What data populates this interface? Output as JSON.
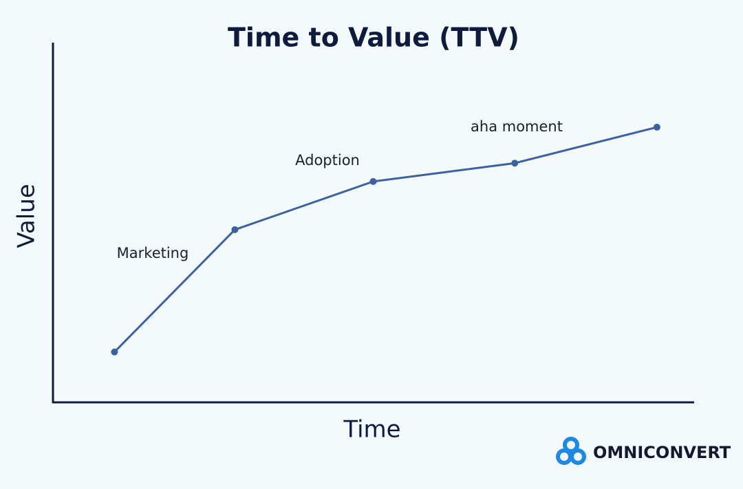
{
  "chart_data": {
    "type": "line",
    "title": "Time to Value (TTV)",
    "xlabel": "Time",
    "ylabel": "Value",
    "x": [
      9.6,
      28.4,
      50,
      72.1,
      94.3
    ],
    "series": [
      {
        "color": "#3b62a0",
        "values": [
          14,
          48,
          61.4,
          66.5,
          76.5
        ]
      }
    ],
    "annotations": [
      "Marketing",
      "Adoption",
      "aha moment"
    ],
    "xlim": [
      0,
      100
    ],
    "ylim": [
      0,
      100
    ]
  },
  "brand": "OMNICONVERT"
}
